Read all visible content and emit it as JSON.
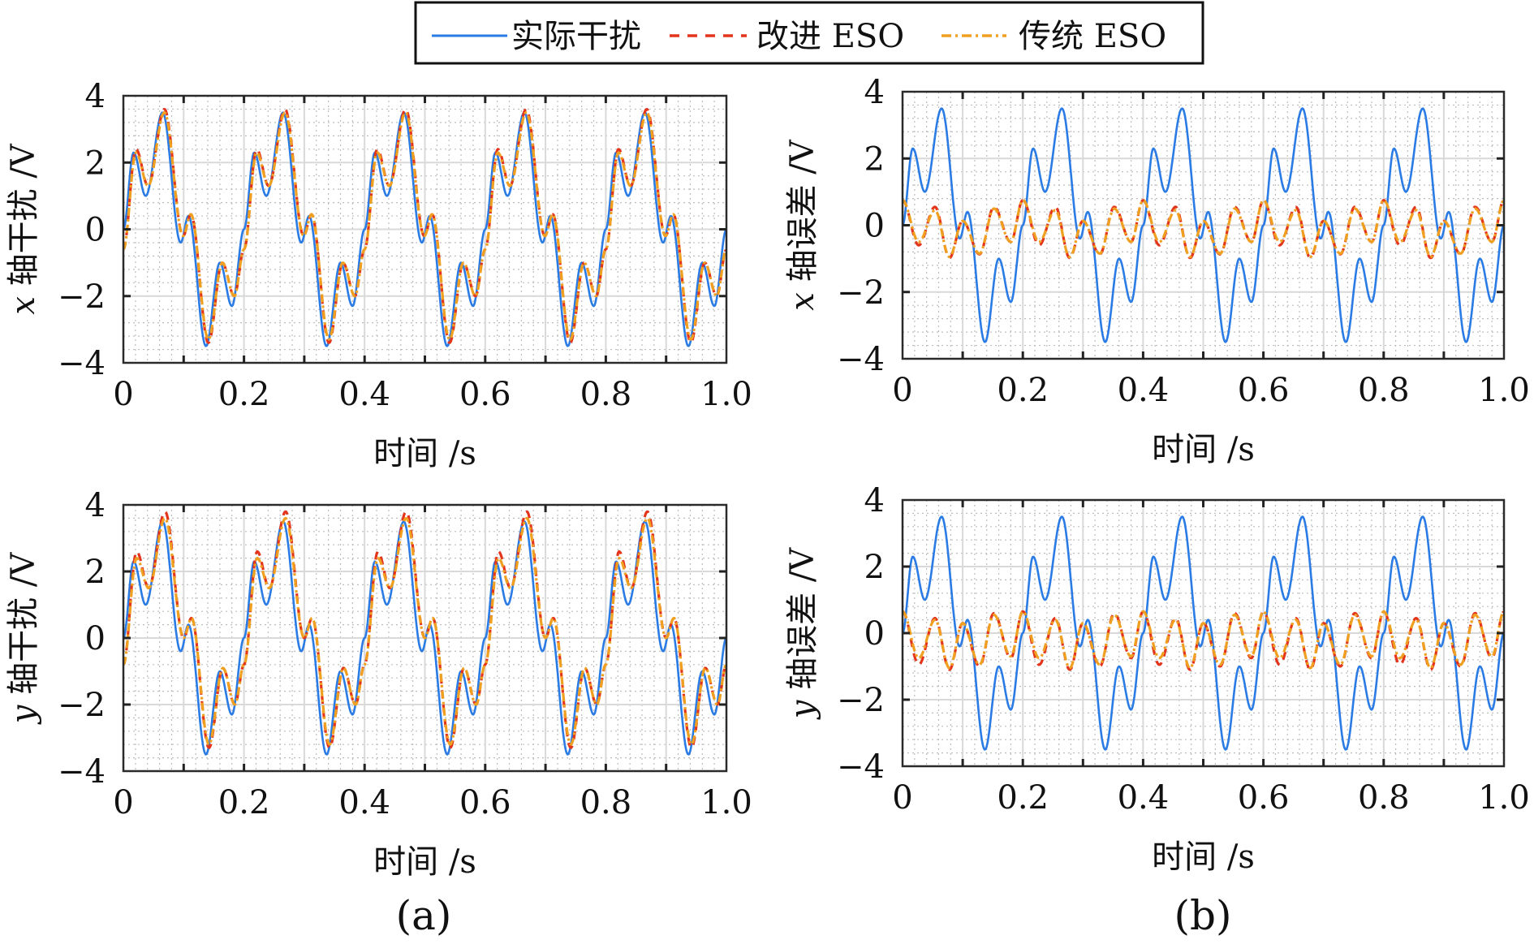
{
  "legend": {
    "entries": [
      {
        "label": "实际干扰",
        "color": "#2a7be4",
        "style": "solid"
      },
      {
        "label": "改进 ESO",
        "color": "#e3341c",
        "style": "dashed"
      },
      {
        "label": "传统 ESO",
        "color": "#f0a020",
        "style": "dashdot"
      }
    ]
  },
  "captions": {
    "a": "(a)",
    "b": "(b)"
  },
  "chart_data": [
    {
      "id": "x-disturbance",
      "type": "line",
      "title": "",
      "xlabel": "时间 /s",
      "ylabel_var": "x",
      "ylabel": "轴干扰 /V",
      "xlim": [
        0,
        1.0
      ],
      "ylim": [
        -4,
        4
      ],
      "xticks": [
        "0",
        "0.2",
        "0.4",
        "0.6",
        "0.8",
        "1.0"
      ],
      "yticks": [
        "4",
        "2",
        "0",
        "−2",
        "−4"
      ],
      "grid": true,
      "period": 0.2,
      "series": [
        {
          "name": "实际干扰",
          "t": [
            0,
            0.017,
            0.037,
            0.065,
            0.095,
            0.108,
            0.137,
            0.16,
            0.18,
            0.2
          ],
          "y": [
            0,
            2.3,
            1.0,
            3.5,
            -0.4,
            0.4,
            -3.5,
            -1.0,
            -2.3,
            0
          ]
        },
        {
          "name": "改进 ESO",
          "t": [
            0,
            0.021,
            0.041,
            0.068,
            0.099,
            0.112,
            0.141,
            0.164,
            0.184,
            0.2
          ],
          "y": [
            -0.6,
            2.4,
            1.3,
            3.6,
            -0.2,
            0.45,
            -3.4,
            -1.0,
            -2.0,
            -0.6
          ]
        },
        {
          "name": "传统 ESO",
          "t": [
            0,
            0.021,
            0.041,
            0.068,
            0.099,
            0.112,
            0.141,
            0.164,
            0.184,
            0.2
          ],
          "y": [
            -0.6,
            2.3,
            1.3,
            3.5,
            -0.2,
            0.45,
            -3.3,
            -1.0,
            -2.0,
            -0.6
          ]
        }
      ]
    },
    {
      "id": "x-error",
      "type": "line",
      "title": "",
      "xlabel": "时间 /s",
      "ylabel_var": "x",
      "ylabel": "轴误差 /V",
      "xlim": [
        0,
        1.0
      ],
      "ylim": [
        -4,
        4
      ],
      "xticks": [
        "0",
        "0.2",
        "0.4",
        "0.6",
        "0.8",
        "1.0"
      ],
      "yticks": [
        "4",
        "2",
        "0",
        "−2",
        "−4"
      ],
      "grid": true,
      "period": 0.2,
      "series": [
        {
          "name": "实际干扰",
          "t": [
            0,
            0.017,
            0.037,
            0.065,
            0.095,
            0.108,
            0.137,
            0.16,
            0.18,
            0.2
          ],
          "y": [
            0,
            2.3,
            1.0,
            3.5,
            -0.4,
            0.4,
            -3.5,
            -1.0,
            -2.3,
            0
          ]
        },
        {
          "name": "改进 ESO",
          "t": [
            0,
            0.027,
            0.054,
            0.078,
            0.1,
            0.128,
            0.152,
            0.18,
            0.2
          ],
          "y": [
            0.75,
            -0.6,
            0.55,
            -0.98,
            0.13,
            -0.87,
            0.55,
            -0.5,
            0.75
          ]
        },
        {
          "name": "传统 ESO",
          "t": [
            0,
            0.027,
            0.054,
            0.078,
            0.1,
            0.128,
            0.152,
            0.18,
            0.2
          ],
          "y": [
            0.75,
            -0.5,
            0.45,
            -0.95,
            0.13,
            -0.85,
            0.5,
            -0.5,
            0.75
          ]
        }
      ]
    },
    {
      "id": "y-disturbance",
      "type": "line",
      "title": "",
      "xlabel": "时间 /s",
      "ylabel_var": "y",
      "ylabel": "轴干扰 /V",
      "xlim": [
        0,
        1.0
      ],
      "ylim": [
        -4,
        4
      ],
      "xticks": [
        "0",
        "0.2",
        "0.4",
        "0.6",
        "0.8",
        "1.0"
      ],
      "yticks": [
        "4",
        "2",
        "0",
        "−2",
        "−4"
      ],
      "grid": true,
      "period": 0.2,
      "series": [
        {
          "name": "实际干扰",
          "t": [
            0,
            0.017,
            0.037,
            0.065,
            0.095,
            0.108,
            0.137,
            0.16,
            0.18,
            0.2
          ],
          "y": [
            0,
            2.3,
            1.0,
            3.5,
            -0.4,
            0.4,
            -3.5,
            -1.0,
            -2.3,
            0
          ]
        },
        {
          "name": "改进 ESO",
          "t": [
            0,
            0.022,
            0.042,
            0.069,
            0.1,
            0.113,
            0.142,
            0.165,
            0.185,
            0.2
          ],
          "y": [
            -0.8,
            2.6,
            1.5,
            3.8,
            0.0,
            0.6,
            -3.3,
            -0.9,
            -2.0,
            -0.8
          ]
        },
        {
          "name": "传统 ESO",
          "t": [
            0,
            0.022,
            0.042,
            0.069,
            0.1,
            0.113,
            0.142,
            0.165,
            0.185,
            0.2
          ],
          "y": [
            -0.8,
            2.4,
            1.5,
            3.6,
            0.0,
            0.6,
            -3.2,
            -0.9,
            -2.0,
            -0.8
          ]
        }
      ]
    },
    {
      "id": "y-error",
      "type": "line",
      "title": "",
      "xlabel": "时间 /s",
      "ylabel_var": "y",
      "ylabel": "轴误差 /V",
      "xlim": [
        0,
        1.0
      ],
      "ylim": [
        -4,
        4
      ],
      "xticks": [
        "0",
        "0.2",
        "0.4",
        "0.6",
        "0.8",
        "1.0"
      ],
      "yticks": [
        "4",
        "2",
        "0",
        "−2",
        "−4"
      ],
      "grid": true,
      "period": 0.2,
      "series": [
        {
          "name": "实际干扰",
          "t": [
            0,
            0.017,
            0.037,
            0.065,
            0.095,
            0.108,
            0.137,
            0.16,
            0.18,
            0.2
          ],
          "y": [
            0,
            2.3,
            1.0,
            3.5,
            -0.4,
            0.4,
            -3.5,
            -1.0,
            -2.3,
            0
          ]
        },
        {
          "name": "改进 ESO",
          "t": [
            0,
            0.027,
            0.054,
            0.078,
            0.1,
            0.128,
            0.152,
            0.18,
            0.2
          ],
          "y": [
            0.65,
            -0.95,
            0.45,
            -1.1,
            0.3,
            -1.0,
            0.6,
            -0.75,
            0.65
          ]
        },
        {
          "name": "传统 ESO",
          "t": [
            0,
            0.027,
            0.054,
            0.078,
            0.1,
            0.128,
            0.152,
            0.18,
            0.2
          ],
          "y": [
            0.65,
            -0.75,
            0.4,
            -1.05,
            0.3,
            -0.95,
            0.55,
            -0.7,
            0.65
          ]
        }
      ]
    }
  ]
}
